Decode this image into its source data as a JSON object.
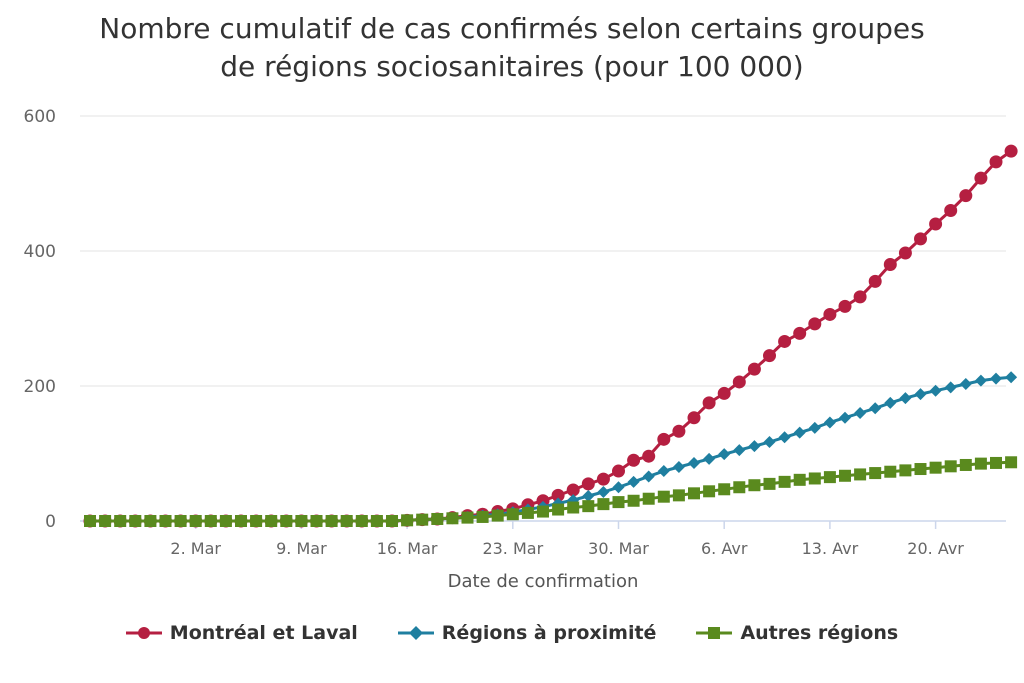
{
  "chart_data": {
    "type": "line",
    "title_line1": "Nombre cumulatif de cas confirmés selon certains groupes",
    "title_line2": "de régions sociosanitaires (pour 100 000)",
    "xlabel": "Date de confirmation",
    "ylabel": "",
    "ylim": [
      0,
      600
    ],
    "yticks": [
      "0",
      "200",
      "400",
      "600"
    ],
    "x_start": "2020-02-24",
    "x_end": "2020-04-24",
    "xticks": [
      {
        "date": "2020-03-02",
        "label": "2. Mar"
      },
      {
        "date": "2020-03-09",
        "label": "9. Mar"
      },
      {
        "date": "2020-03-16",
        "label": "16. Mar"
      },
      {
        "date": "2020-03-23",
        "label": "23. Mar"
      },
      {
        "date": "2020-03-30",
        "label": "30. Mar"
      },
      {
        "date": "2020-04-06",
        "label": "6. Avr"
      },
      {
        "date": "2020-04-13",
        "label": "13. Avr"
      },
      {
        "date": "2020-04-20",
        "label": "20. Avr"
      }
    ],
    "grid": true,
    "legend_position": "bottom",
    "series": [
      {
        "name": "Montréal et Laval",
        "color": "#b51f41",
        "marker": "circle",
        "values": [
          0,
          0,
          0,
          0,
          0,
          0,
          0,
          0,
          0,
          0,
          0,
          0,
          0,
          0,
          0,
          0,
          0,
          0,
          0,
          0,
          0,
          1,
          2,
          3,
          5,
          8,
          10,
          14,
          18,
          24,
          30,
          38,
          46,
          55,
          62,
          74,
          90,
          96,
          121,
          133,
          153,
          175,
          189,
          206,
          225,
          245,
          266,
          278,
          292,
          306,
          318,
          332,
          355,
          380,
          397,
          418,
          440,
          460,
          482,
          508,
          532,
          548
        ]
      },
      {
        "name": "Régions à proximité",
        "color": "#1f7fa0",
        "marker": "diamond",
        "values": [
          0,
          0,
          0,
          0,
          0,
          0,
          0,
          0,
          0,
          0,
          0,
          0,
          0,
          0,
          0,
          0,
          0,
          0,
          0,
          0,
          0,
          1,
          2,
          3,
          4,
          6,
          8,
          10,
          13,
          17,
          21,
          26,
          31,
          37,
          43,
          50,
          58,
          66,
          74,
          80,
          86,
          92,
          99,
          105,
          111,
          117,
          124,
          131,
          138,
          146,
          153,
          160,
          167,
          175,
          182,
          188,
          193,
          198,
          203,
          208,
          211,
          213
        ]
      },
      {
        "name": "Autres régions",
        "color": "#5a8a1e",
        "marker": "square",
        "values": [
          0,
          0,
          0,
          0,
          0,
          0,
          0,
          0,
          0,
          0,
          0,
          0,
          0,
          0,
          0,
          0,
          0,
          0,
          0,
          0,
          0,
          1,
          2,
          3,
          4,
          5,
          6,
          8,
          10,
          12,
          14,
          17,
          20,
          22,
          25,
          28,
          30,
          33,
          36,
          38,
          41,
          44,
          47,
          50,
          53,
          55,
          58,
          61,
          63,
          65,
          67,
          69,
          71,
          73,
          75,
          77,
          79,
          81,
          83,
          85,
          86,
          87
        ]
      }
    ]
  }
}
